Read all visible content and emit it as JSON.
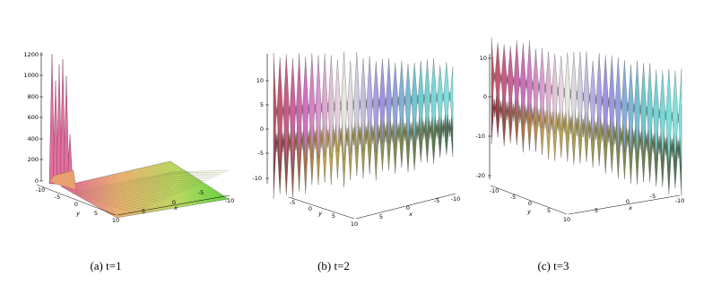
{
  "panels": [
    {
      "caption": "(a) t=1",
      "z_ticks": [
        "0",
        "200",
        "400",
        "600",
        "800",
        "1000",
        "1200"
      ],
      "y_ticks": [
        "-10",
        "-5",
        "0",
        "5",
        "10"
      ],
      "x_ticks": [
        "5",
        "0",
        "-5",
        "-10"
      ],
      "y_label": "y",
      "x_label": "x"
    },
    {
      "caption": "(b) t=2",
      "z_ticks": [
        "10",
        "5",
        "0",
        "-5",
        "-10"
      ],
      "y_ticks": [
        "-5",
        "0",
        "5",
        "10"
      ],
      "x_ticks": [
        "5",
        "0",
        "-5",
        "-10"
      ],
      "y_label": "y",
      "x_label": "x"
    },
    {
      "caption": "(c) t=3",
      "z_ticks": [
        "10",
        "0",
        "-10",
        "-20"
      ],
      "y_ticks": [
        "-10",
        "-5",
        "0",
        "5",
        "10"
      ],
      "x_ticks": [
        "5",
        "0",
        "-5",
        "-10"
      ],
      "y_label": "y",
      "x_label": "x"
    }
  ]
}
